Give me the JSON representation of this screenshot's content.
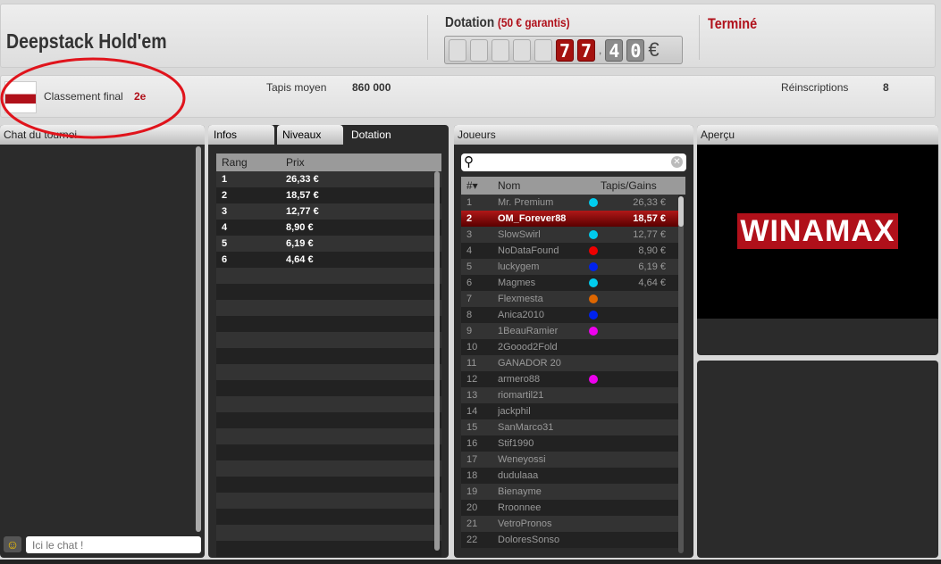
{
  "header": {
    "title": "Deepstack Hold'em",
    "prize_label": "Dotation",
    "prize_guarantee": "(50 € garantis)",
    "prize_digits": [
      "",
      "",
      "",
      "",
      "",
      "7",
      "7",
      ",",
      "4",
      "0"
    ],
    "currency": "€",
    "status": "Terminé"
  },
  "info": {
    "rank_label": "Classement final",
    "rank_value": "2e",
    "avg_stack_label": "Tapis moyen",
    "avg_stack_value": "860 000",
    "rebuys_label": "Réinscriptions",
    "rebuys_value": "8"
  },
  "chat": {
    "title": "Chat du tournoi",
    "placeholder": "Ici le chat !"
  },
  "tabs": [
    {
      "label": "Infos"
    },
    {
      "label": "Niveaux"
    },
    {
      "label": "Dotation",
      "active": true
    }
  ],
  "prizes": {
    "headers": [
      "Rang",
      "Prix"
    ],
    "rows": [
      [
        "1",
        "26,33 €"
      ],
      [
        "2",
        "18,57 €"
      ],
      [
        "3",
        "12,77 €"
      ],
      [
        "4",
        "8,90 €"
      ],
      [
        "5",
        "6,19 €"
      ],
      [
        "6",
        "4,64 €"
      ]
    ]
  },
  "players": {
    "title": "Joueurs",
    "search_value": "",
    "headers": [
      "#▾",
      "Nom",
      "Tapis/Gains"
    ],
    "selected": 2,
    "rows": [
      [
        "1",
        "Mr. Premium",
        "#00ccee",
        "26,33 €"
      ],
      [
        "2",
        "OM_Forever88",
        "",
        "18,57 €"
      ],
      [
        "3",
        "SlowSwirl",
        "#00ccee",
        "12,77 €"
      ],
      [
        "4",
        "NoDataFound",
        "#ee0000",
        "8,90 €"
      ],
      [
        "5",
        "luckygem",
        "#0022ee",
        "6,19 €"
      ],
      [
        "6",
        "Magmes",
        "#00ccee",
        "4,64 €"
      ],
      [
        "7",
        "Flexmesta",
        "#dd6600",
        ""
      ],
      [
        "8",
        "Anica2010",
        "#0022ee",
        ""
      ],
      [
        "9",
        "1BeauRamier",
        "#ee00ee",
        ""
      ],
      [
        "10",
        "2Goood2Fold",
        "",
        ""
      ],
      [
        "11",
        "GANADOR 20",
        "",
        ""
      ],
      [
        "12",
        "armero88",
        "#ee00ee",
        ""
      ],
      [
        "13",
        "riomartil21",
        "",
        ""
      ],
      [
        "14",
        "jackphil",
        "",
        ""
      ],
      [
        "15",
        "SanMarco31",
        "",
        ""
      ],
      [
        "16",
        "Stif1990",
        "",
        ""
      ],
      [
        "17",
        "Weneyossi",
        "",
        ""
      ],
      [
        "18",
        "dudulaaa",
        "",
        ""
      ],
      [
        "19",
        "Bienayme",
        "",
        ""
      ],
      [
        "20",
        "Rroonnee",
        "",
        ""
      ],
      [
        "21",
        "VetroPronos",
        "",
        ""
      ],
      [
        "22",
        "DoloresSonso",
        "",
        ""
      ]
    ]
  },
  "preview": {
    "title": "Aperçu",
    "logo_text": "WINAMAX"
  },
  "colors": {
    "accent": "#b0101a",
    "panel": "#2b2b2b"
  }
}
